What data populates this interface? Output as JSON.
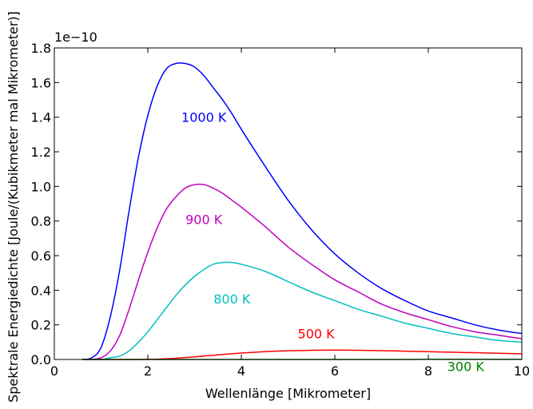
{
  "chart_data": {
    "type": "line",
    "xlabel": "Wellenlänge [Mikrometer]",
    "ylabel": "Spektrale Energiedichte [Joule/(Kubikmeter mal Mikrometer)]",
    "offset_text": "1e−10",
    "xlim": [
      0,
      10
    ],
    "ylim": [
      0,
      1.8
    ],
    "x_ticks": [
      "0",
      "2",
      "4",
      "6",
      "8",
      "10"
    ],
    "y_ticks": [
      "0.0",
      "0.2",
      "0.4",
      "0.6",
      "0.8",
      "1.0",
      "1.2",
      "1.4",
      "1.6",
      "1.8"
    ],
    "grid": false,
    "x": [
      0.6,
      0.8,
      1.0,
      1.2,
      1.4,
      1.6,
      1.8,
      2.0,
      2.2,
      2.4,
      2.6,
      2.8,
      3.0,
      3.2,
      3.4,
      3.6,
      3.8,
      4.0,
      4.5,
      5.0,
      5.5,
      6.0,
      6.5,
      7.0,
      7.5,
      8.0,
      8.5,
      9.0,
      9.5,
      10.0
    ],
    "series": [
      {
        "name": "1000 K",
        "color": "#0000ff",
        "values": [
          0.0,
          0.01,
          0.07,
          0.25,
          0.52,
          0.86,
          1.17,
          1.41,
          1.58,
          1.68,
          1.71,
          1.71,
          1.69,
          1.64,
          1.57,
          1.5,
          1.42,
          1.33,
          1.12,
          0.92,
          0.75,
          0.61,
          0.5,
          0.41,
          0.34,
          0.28,
          0.24,
          0.2,
          0.17,
          0.15
        ]
      },
      {
        "name": "900 K",
        "color": "#bf00bf",
        "values": [
          0.0,
          0.0,
          0.01,
          0.05,
          0.14,
          0.29,
          0.46,
          0.62,
          0.76,
          0.87,
          0.94,
          0.99,
          1.01,
          1.01,
          0.99,
          0.96,
          0.92,
          0.88,
          0.77,
          0.65,
          0.55,
          0.46,
          0.39,
          0.32,
          0.27,
          0.23,
          0.19,
          0.16,
          0.14,
          0.12
        ]
      },
      {
        "name": "800 K",
        "color": "#00bfbf",
        "values": [
          0.0,
          0.0,
          0.0,
          0.01,
          0.02,
          0.05,
          0.1,
          0.16,
          0.23,
          0.3,
          0.37,
          0.43,
          0.48,
          0.52,
          0.55,
          0.56,
          0.56,
          0.55,
          0.51,
          0.45,
          0.39,
          0.34,
          0.29,
          0.25,
          0.21,
          0.18,
          0.15,
          0.13,
          0.11,
          0.1
        ]
      },
      {
        "name": "500 K",
        "color": "#ff0000",
        "values": [
          0.0,
          0.0,
          0.0,
          0.0,
          0.0,
          0.0,
          0.0,
          0.001,
          0.002,
          0.004,
          0.007,
          0.011,
          0.015,
          0.02,
          0.024,
          0.029,
          0.033,
          0.037,
          0.045,
          0.05,
          0.053,
          0.054,
          0.053,
          0.051,
          0.048,
          0.045,
          0.042,
          0.039,
          0.036,
          0.033
        ]
      },
      {
        "name": "300 K",
        "color": "#008000",
        "values": [
          0.0,
          0.0,
          0.0,
          0.0,
          0.0,
          0.0,
          0.0,
          0.0,
          0.0,
          0.0,
          0.0,
          0.0,
          0.0,
          0.0,
          0.0,
          0.0,
          0.0,
          0.0,
          0.0,
          0.0,
          0.0,
          0.0,
          0.0,
          0.0,
          0.0,
          0.001,
          0.001,
          0.001,
          0.001,
          0.001
        ]
      }
    ],
    "annotations": [
      {
        "text": "1000 K",
        "x": 3.2,
        "y": 1.4,
        "color": "#0000ff"
      },
      {
        "text": "900 K",
        "x": 3.2,
        "y": 0.81,
        "color": "#bf00bf"
      },
      {
        "text": "800 K",
        "x": 3.8,
        "y": 0.35,
        "color": "#00bfbf"
      },
      {
        "text": "500 K",
        "x": 5.6,
        "y": 0.15,
        "color": "#ff0000"
      },
      {
        "text": "300 K",
        "x": 8.8,
        "y": -0.04,
        "color": "#008000"
      }
    ]
  }
}
